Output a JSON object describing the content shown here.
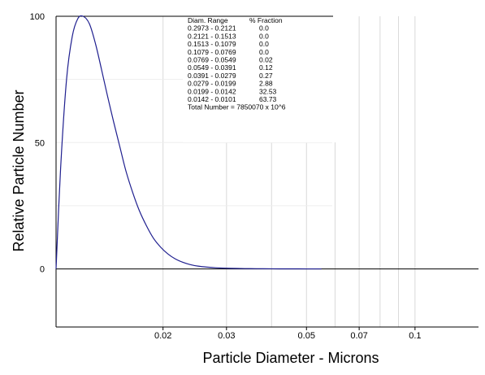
{
  "chart_data": {
    "type": "line",
    "xlabel": "Particle Diameter  -  Microns",
    "ylabel": "Relative Particle Number",
    "x_scale": "log",
    "xlim": [
      0.0101,
      0.15
    ],
    "ylim": [
      -23,
      100
    ],
    "x_ticks": [
      {
        "value": 0.02,
        "label": "0.02"
      },
      {
        "value": 0.03,
        "label": "0.03"
      },
      {
        "value": 0.05,
        "label": "0.05"
      },
      {
        "value": 0.07,
        "label": "0.07"
      },
      {
        "value": 0.1,
        "label": "0.1"
      }
    ],
    "x_gridlines": [
      0.02,
      0.03,
      0.04,
      0.05,
      0.06,
      0.07,
      0.08,
      0.09,
      0.1
    ],
    "y_ticks": [
      {
        "value": 100,
        "label": "100"
      },
      {
        "value": 50,
        "label": "50"
      },
      {
        "value": 0,
        "label": "0"
      }
    ],
    "grid": true,
    "series": [
      {
        "color": "#1f1f8f",
        "x": [
          0.0101,
          0.0104,
          0.0108,
          0.0112,
          0.0116,
          0.012,
          0.0125,
          0.013,
          0.0135,
          0.014,
          0.0146,
          0.0152,
          0.0158,
          0.0165,
          0.0172,
          0.018,
          0.0188,
          0.0197,
          0.0206,
          0.0216,
          0.0227,
          0.0238,
          0.025,
          0.0265,
          0.028,
          0.03,
          0.032,
          0.035,
          0.038,
          0.042,
          0.046,
          0.05,
          0.055
        ],
        "y": [
          0,
          40,
          75,
          92,
          99,
          100,
          97,
          89,
          79,
          69,
          58,
          48,
          38.5,
          30,
          23,
          17,
          12.2,
          8.6,
          6.0,
          4.0,
          2.6,
          1.7,
          1.1,
          0.7,
          0.45,
          0.28,
          0.18,
          0.1,
          0.06,
          0.03,
          0.015,
          0.008,
          0.004
        ]
      }
    ],
    "table": {
      "header_range": "Diam. Range",
      "header_fraction": "%  Fraction",
      "rows": [
        {
          "range": "0.2973 - 0.2121",
          "fraction": "0.0"
        },
        {
          "range": "0.2121 - 0.1513",
          "fraction": "0.0"
        },
        {
          "range": "0.1513 - 0.1079",
          "fraction": "0.0"
        },
        {
          "range": "0.1079 - 0.0769",
          "fraction": "0.0"
        },
        {
          "range": "0.0769 - 0.0549",
          "fraction": "0.02"
        },
        {
          "range": "0.0549 - 0.0391",
          "fraction": "0.12"
        },
        {
          "range": "0.0391 - 0.0279",
          "fraction": "0.27"
        },
        {
          "range": "0.0279 - 0.0199",
          "fraction": "2.88"
        },
        {
          "range": "0.0199 - 0.0142",
          "fraction": "32.53"
        },
        {
          "range": "0.0142 - 0.0101",
          "fraction": "63.73"
        }
      ],
      "total": "Total Number = 7850070 x 10^6"
    }
  }
}
